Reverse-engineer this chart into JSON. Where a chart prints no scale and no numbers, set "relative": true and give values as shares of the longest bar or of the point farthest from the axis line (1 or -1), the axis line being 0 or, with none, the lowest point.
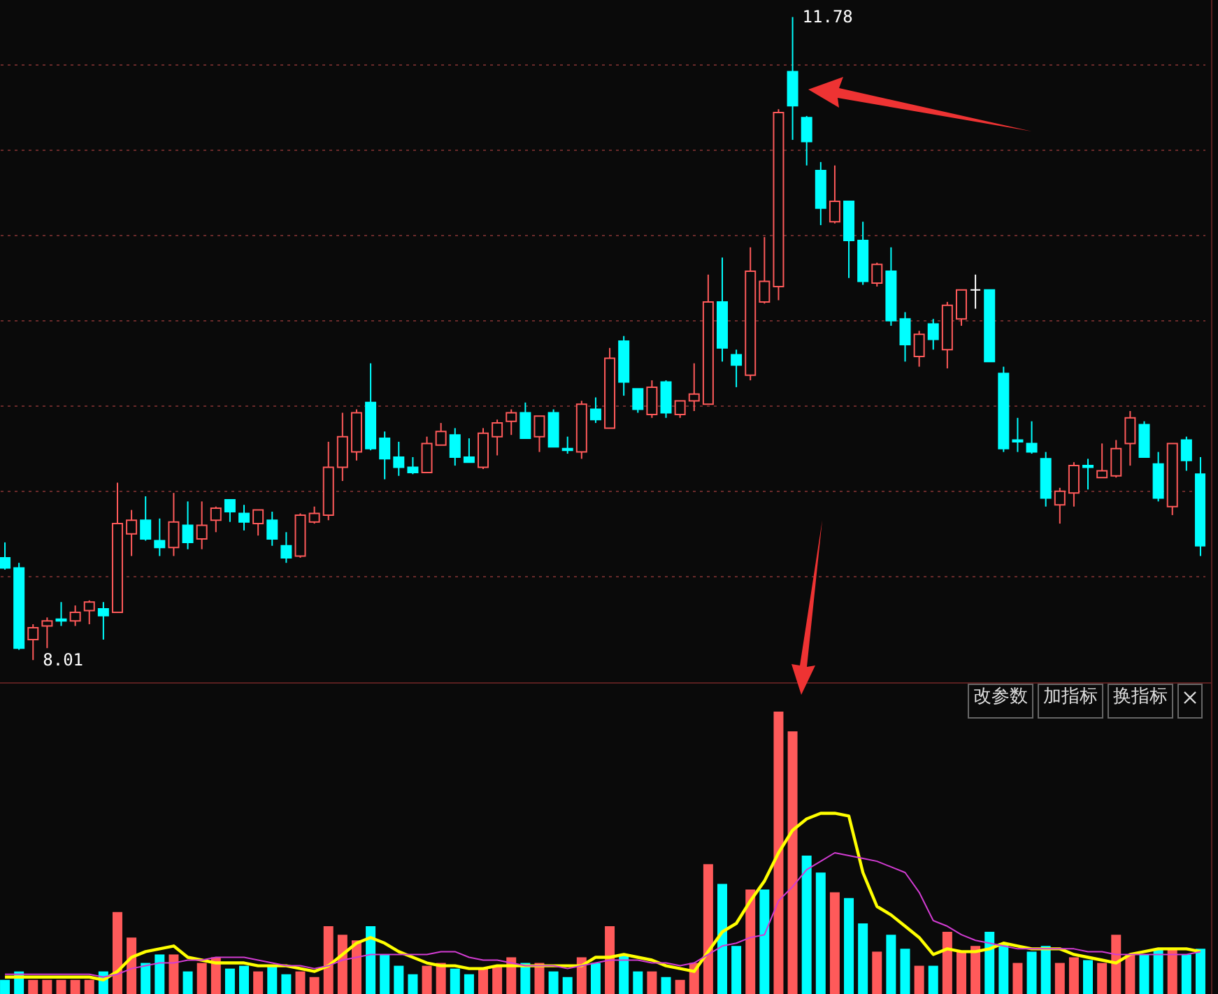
{
  "chart_data": [
    {
      "type": "candlestick",
      "categories": [
        null,
        null,
        null,
        null,
        null,
        null,
        null,
        null,
        null,
        null,
        null,
        null,
        null,
        null,
        null,
        null,
        null,
        null,
        null,
        null,
        null,
        null,
        null,
        null,
        null,
        null,
        null,
        null,
        null,
        null,
        null,
        null,
        null,
        null,
        null,
        null,
        null,
        null,
        null,
        null,
        null,
        null,
        null,
        null,
        null,
        null,
        null,
        null,
        null,
        null,
        null,
        null,
        null,
        null,
        null,
        null,
        null,
        null,
        null,
        null,
        null,
        null,
        null,
        null,
        null,
        null,
        null,
        null,
        null,
        null,
        null,
        null,
        null,
        null,
        null,
        null,
        null,
        null,
        null,
        null,
        null,
        null,
        null,
        null,
        null,
        null
      ],
      "ohlc": [
        [
          8.61,
          8.7,
          8.54,
          8.55
        ],
        [
          8.55,
          8.58,
          8.07,
          8.08
        ],
        [
          8.13,
          8.22,
          8.01,
          8.2
        ],
        [
          8.21,
          8.26,
          8.08,
          8.24
        ],
        [
          8.25,
          8.35,
          8.21,
          8.24
        ],
        [
          8.24,
          8.33,
          8.21,
          8.29
        ],
        [
          8.3,
          8.36,
          8.22,
          8.35
        ],
        [
          8.31,
          8.35,
          8.13,
          8.27
        ],
        [
          8.29,
          9.05,
          8.29,
          8.81
        ],
        [
          8.75,
          8.89,
          8.62,
          8.83
        ],
        [
          8.83,
          8.97,
          8.71,
          8.72
        ],
        [
          8.71,
          8.84,
          8.62,
          8.67
        ],
        [
          8.67,
          8.99,
          8.62,
          8.82
        ],
        [
          8.8,
          8.94,
          8.66,
          8.7
        ],
        [
          8.72,
          8.94,
          8.66,
          8.8
        ],
        [
          8.83,
          8.91,
          8.76,
          8.9
        ],
        [
          8.95,
          8.95,
          8.82,
          8.88
        ],
        [
          8.87,
          8.92,
          8.77,
          8.82
        ],
        [
          8.81,
          8.89,
          8.74,
          8.89
        ],
        [
          8.83,
          8.88,
          8.68,
          8.72
        ],
        [
          8.68,
          8.76,
          8.58,
          8.61
        ],
        [
          8.62,
          8.87,
          8.61,
          8.86
        ],
        [
          8.82,
          8.91,
          8.81,
          8.87
        ],
        [
          8.86,
          9.29,
          8.83,
          9.14
        ],
        [
          9.14,
          9.46,
          9.06,
          9.32
        ],
        [
          9.23,
          9.48,
          9.18,
          9.46
        ],
        [
          9.52,
          9.75,
          9.24,
          9.25
        ],
        [
          9.31,
          9.35,
          9.07,
          9.19
        ],
        [
          9.2,
          9.29,
          9.09,
          9.14
        ],
        [
          9.14,
          9.2,
          9.1,
          9.11
        ],
        [
          9.11,
          9.32,
          9.11,
          9.28
        ],
        [
          9.27,
          9.4,
          9.27,
          9.35
        ],
        [
          9.33,
          9.37,
          9.15,
          9.2
        ],
        [
          9.2,
          9.31,
          9.17,
          9.17
        ],
        [
          9.14,
          9.37,
          9.13,
          9.34
        ],
        [
          9.32,
          9.42,
          9.21,
          9.4
        ],
        [
          9.41,
          9.48,
          9.33,
          9.46
        ],
        [
          9.46,
          9.52,
          9.31,
          9.31
        ],
        [
          9.32,
          9.44,
          9.23,
          9.44
        ],
        [
          9.46,
          9.48,
          9.26,
          9.26
        ],
        [
          9.25,
          9.32,
          9.22,
          9.24
        ],
        [
          9.23,
          9.53,
          9.19,
          9.51
        ],
        [
          9.48,
          9.55,
          9.4,
          9.42
        ],
        [
          9.37,
          9.84,
          9.37,
          9.78
        ],
        [
          9.88,
          9.91,
          9.56,
          9.64
        ],
        [
          9.6,
          9.6,
          9.46,
          9.48
        ],
        [
          9.45,
          9.65,
          9.43,
          9.61
        ],
        [
          9.64,
          9.65,
          9.43,
          9.46
        ],
        [
          9.45,
          9.53,
          9.43,
          9.53
        ],
        [
          9.53,
          9.75,
          9.47,
          9.57
        ],
        [
          9.51,
          10.27,
          9.51,
          10.11
        ],
        [
          10.11,
          10.37,
          9.76,
          9.84
        ],
        [
          9.8,
          9.83,
          9.61,
          9.74
        ],
        [
          9.68,
          10.43,
          9.65,
          10.29
        ],
        [
          10.11,
          10.49,
          10.1,
          10.23
        ],
        [
          10.2,
          11.24,
          10.12,
          11.22
        ],
        [
          11.46,
          11.78,
          11.06,
          11.26
        ],
        [
          11.19,
          11.2,
          10.91,
          11.05
        ],
        [
          10.88,
          10.93,
          10.56,
          10.66
        ],
        [
          10.58,
          10.91,
          10.57,
          10.7
        ],
        [
          10.7,
          10.7,
          10.25,
          10.47
        ],
        [
          10.47,
          10.58,
          10.21,
          10.23
        ],
        [
          10.22,
          10.34,
          10.2,
          10.33
        ],
        [
          10.29,
          10.43,
          9.97,
          10.0
        ],
        [
          10.01,
          10.05,
          9.76,
          9.86
        ],
        [
          9.79,
          9.94,
          9.73,
          9.92
        ],
        [
          9.98,
          10.01,
          9.83,
          9.89
        ],
        [
          9.83,
          10.11,
          9.72,
          10.09
        ],
        [
          10.01,
          10.18,
          9.97,
          10.18
        ],
        [
          10.18,
          10.27,
          10.07,
          10.18
        ],
        [
          10.18,
          10.18,
          9.76,
          9.76
        ],
        [
          9.69,
          9.73,
          9.23,
          9.25
        ],
        [
          9.3,
          9.43,
          9.23,
          9.29
        ],
        [
          9.28,
          9.41,
          9.22,
          9.23
        ],
        [
          9.19,
          9.23,
          8.91,
          8.96
        ],
        [
          8.92,
          9.02,
          8.81,
          9.0
        ],
        [
          8.99,
          9.17,
          8.91,
          9.15
        ],
        [
          9.15,
          9.19,
          9.01,
          9.14
        ],
        [
          9.08,
          9.28,
          9.08,
          9.12
        ],
        [
          9.09,
          9.3,
          9.08,
          9.25
        ],
        [
          9.28,
          9.47,
          9.15,
          9.43
        ],
        [
          9.39,
          9.41,
          9.2,
          9.2
        ],
        [
          9.16,
          9.23,
          8.94,
          8.96
        ],
        [
          8.91,
          9.28,
          8.86,
          9.28
        ],
        [
          9.3,
          9.32,
          9.12,
          9.18
        ],
        [
          9.1,
          9.2,
          8.62,
          8.68
        ]
      ],
      "colors": [
        "#00ffff",
        "#00ffff",
        "#ff5a5a",
        "#ff5a5a",
        "#00ffff",
        "#ff5a5a",
        "#ff5a5a",
        "#00ffff",
        "#ff5a5a",
        "#ff5a5a",
        "#00ffff",
        "#00ffff",
        "#ff5a5a",
        "#00ffff",
        "#ff5a5a",
        "#ff5a5a",
        "#00ffff",
        "#00ffff",
        "#ff5a5a",
        "#00ffff",
        "#00ffff",
        "#ff5a5a",
        "#ff5a5a",
        "#ff5a5a",
        "#ff5a5a",
        "#ff5a5a",
        "#00ffff",
        "#00ffff",
        "#00ffff",
        "#00ffff",
        "#ff5a5a",
        "#ff5a5a",
        "#00ffff",
        "#00ffff",
        "#ff5a5a",
        "#ff5a5a",
        "#ff5a5a",
        "#00ffff",
        "#ff5a5a",
        "#00ffff",
        "#00ffff",
        "#ff5a5a",
        "#00ffff",
        "#ff5a5a",
        "#00ffff",
        "#00ffff",
        "#ff5a5a",
        "#00ffff",
        "#ff5a5a",
        "#ff5a5a",
        "#ff5a5a",
        "#00ffff",
        "#00ffff",
        "#ff5a5a",
        "#ff5a5a",
        "#ff5a5a",
        "#00ffff",
        "#00ffff",
        "#00ffff",
        "#ff5a5a",
        "#00ffff",
        "#00ffff",
        "#ff5a5a",
        "#00ffff",
        "#00ffff",
        "#ff5a5a",
        "#00ffff",
        "#ff5a5a",
        "#ff5a5a",
        "#ffffff",
        "#00ffff",
        "#00ffff",
        "#00ffff",
        "#00ffff",
        "#00ffff",
        "#ff5a5a",
        "#ff5a5a",
        "#00ffff",
        "#ff5a5a",
        "#ff5a5a",
        "#ff5a5a",
        "#00ffff",
        "#00ffff",
        "#ff5a5a",
        "#00ffff",
        "#00ffff"
      ],
      "ylim": [
        7.88,
        11.88
      ],
      "yticks": [
        {
          "value": 8.5,
          "label": null
        },
        {
          "value": 9,
          "label": null
        },
        {
          "value": 9.5,
          "label": null
        },
        {
          "value": 10,
          "label": null
        },
        {
          "value": 10.5,
          "label": null
        },
        {
          "value": 11,
          "label": null
        },
        {
          "value": 11.5,
          "label": null
        }
      ],
      "grid": "y",
      "annotations": [
        "11.78",
        "8.01"
      ]
    },
    {
      "type": "bar",
      "relative": true,
      "categories": [
        null,
        null,
        null,
        null,
        null,
        null,
        null,
        null,
        null,
        null,
        null,
        null,
        null,
        null,
        null,
        null,
        null,
        null,
        null,
        null,
        null,
        null,
        null,
        null,
        null,
        null,
        null,
        null,
        null,
        null,
        null,
        null,
        null,
        null,
        null,
        null,
        null,
        null,
        null,
        null,
        null,
        null,
        null,
        null,
        null,
        null,
        null,
        null,
        null,
        null,
        null,
        null,
        null,
        null,
        null,
        null,
        null,
        null,
        null,
        null,
        null,
        null,
        null,
        null,
        null,
        null,
        null,
        null,
        null,
        null,
        null,
        null,
        null,
        null,
        null,
        null,
        null,
        null,
        null,
        null,
        null,
        null,
        null,
        null,
        null,
        null
      ],
      "series": [
        {
          "type": "bar",
          "colors": [
            "#00ffff",
            "#00ffff",
            "#ff5a5a",
            "#ff5a5a",
            "#ff5a5a",
            "#ff5a5a",
            "#ff5a5a",
            "#00ffff",
            "#ff5a5a",
            "#ff5a5a",
            "#00ffff",
            "#00ffff",
            "#ff5a5a",
            "#00ffff",
            "#ff5a5a",
            "#ff5a5a",
            "#00ffff",
            "#00ffff",
            "#ff5a5a",
            "#00ffff",
            "#00ffff",
            "#ff5a5a",
            "#ff5a5a",
            "#ff5a5a",
            "#ff5a5a",
            "#ff5a5a",
            "#00ffff",
            "#00ffff",
            "#00ffff",
            "#00ffff",
            "#ff5a5a",
            "#ff5a5a",
            "#00ffff",
            "#00ffff",
            "#ff5a5a",
            "#ff5a5a",
            "#ff5a5a",
            "#00ffff",
            "#ff5a5a",
            "#00ffff",
            "#00ffff",
            "#ff5a5a",
            "#00ffff",
            "#ff5a5a",
            "#00ffff",
            "#00ffff",
            "#ff5a5a",
            "#00ffff",
            "#ff5a5a",
            "#ff5a5a",
            "#ff5a5a",
            "#00ffff",
            "#00ffff",
            "#ff5a5a",
            "#00ffff",
            "#ff5a5a",
            "#ff5a5a",
            "#00ffff",
            "#00ffff",
            "#ff5a5a",
            "#00ffff",
            "#00ffff",
            "#ff5a5a",
            "#00ffff",
            "#00ffff",
            "#ff5a5a",
            "#00ffff",
            "#ff5a5a",
            "#ff5a5a",
            "#ff5a5a",
            "#00ffff",
            "#00ffff",
            "#ff5a5a",
            "#00ffff",
            "#00ffff",
            "#ff5a5a",
            "#ff5a5a",
            "#00ffff",
            "#ff5a5a",
            "#ff5a5a",
            "#ff5a5a",
            "#00ffff",
            "#00ffff",
            "#ff5a5a",
            "#00ffff",
            "#00ffff"
          ],
          "values": [
            0.05,
            0.08,
            0.05,
            0.05,
            0.05,
            0.05,
            0.05,
            0.08,
            0.29,
            0.2,
            0.11,
            0.14,
            0.14,
            0.08,
            0.11,
            0.13,
            0.09,
            0.1,
            0.08,
            0.1,
            0.07,
            0.08,
            0.06,
            0.24,
            0.21,
            0.19,
            0.24,
            0.14,
            0.1,
            0.07,
            0.1,
            0.11,
            0.09,
            0.07,
            0.09,
            0.1,
            0.13,
            0.11,
            0.11,
            0.08,
            0.06,
            0.13,
            0.11,
            0.24,
            0.14,
            0.08,
            0.08,
            0.06,
            0.05,
            0.11,
            0.46,
            0.39,
            0.17,
            0.37,
            0.37,
            1.0,
            0.93,
            0.49,
            0.43,
            0.36,
            0.34,
            0.25,
            0.15,
            0.21,
            0.16,
            0.1,
            0.1,
            0.22,
            0.15,
            0.17,
            0.22,
            0.18,
            0.11,
            0.15,
            0.17,
            0.11,
            0.13,
            0.12,
            0.11,
            0.21,
            0.14,
            0.14,
            0.16,
            0.16,
            0.14,
            0.16
          ]
        },
        {
          "type": "line",
          "color": "#ffff00",
          "values": [
            0.06,
            0.06,
            0.06,
            0.06,
            0.06,
            0.06,
            0.06,
            0.05,
            0.08,
            0.13,
            0.15,
            0.16,
            0.17,
            0.13,
            0.12,
            0.11,
            0.11,
            0.11,
            0.1,
            0.1,
            0.1,
            0.09,
            0.08,
            0.1,
            0.14,
            0.18,
            0.2,
            0.18,
            0.15,
            0.13,
            0.11,
            0.1,
            0.1,
            0.09,
            0.09,
            0.1,
            0.1,
            0.1,
            0.1,
            0.1,
            0.1,
            0.1,
            0.13,
            0.13,
            0.14,
            0.13,
            0.12,
            0.1,
            0.09,
            0.08,
            0.15,
            0.22,
            0.25,
            0.33,
            0.4,
            0.5,
            0.58,
            0.62,
            0.64,
            0.64,
            0.63,
            0.43,
            0.31,
            0.28,
            0.24,
            0.2,
            0.14,
            0.16,
            0.15,
            0.15,
            0.16,
            0.18,
            0.17,
            0.16,
            0.16,
            0.16,
            0.14,
            0.13,
            0.12,
            0.11,
            0.14,
            0.15,
            0.16,
            0.16,
            0.16,
            0.15
          ]
        },
        {
          "type": "line",
          "color": "#d23cd2",
          "values": [
            0.07,
            0.07,
            0.07,
            0.07,
            0.07,
            0.07,
            0.07,
            0.06,
            0.07,
            0.09,
            0.1,
            0.11,
            0.11,
            0.12,
            0.12,
            0.13,
            0.13,
            0.13,
            0.12,
            0.11,
            0.1,
            0.1,
            0.09,
            0.1,
            0.12,
            0.13,
            0.14,
            0.14,
            0.14,
            0.14,
            0.14,
            0.15,
            0.15,
            0.13,
            0.12,
            0.12,
            0.11,
            0.1,
            0.1,
            0.1,
            0.09,
            0.1,
            0.11,
            0.12,
            0.12,
            0.12,
            0.11,
            0.11,
            0.1,
            0.11,
            0.14,
            0.17,
            0.18,
            0.2,
            0.21,
            0.33,
            0.38,
            0.44,
            0.47,
            0.5,
            0.49,
            0.48,
            0.47,
            0.45,
            0.43,
            0.36,
            0.26,
            0.24,
            0.21,
            0.19,
            0.18,
            0.17,
            0.16,
            0.16,
            0.16,
            0.16,
            0.16,
            0.15,
            0.15,
            0.14,
            0.14,
            0.14,
            0.14,
            0.14,
            0.14,
            0.15
          ]
        }
      ],
      "annotations": [
        "改参数",
        "加指标",
        "换指标"
      ]
    }
  ]
}
